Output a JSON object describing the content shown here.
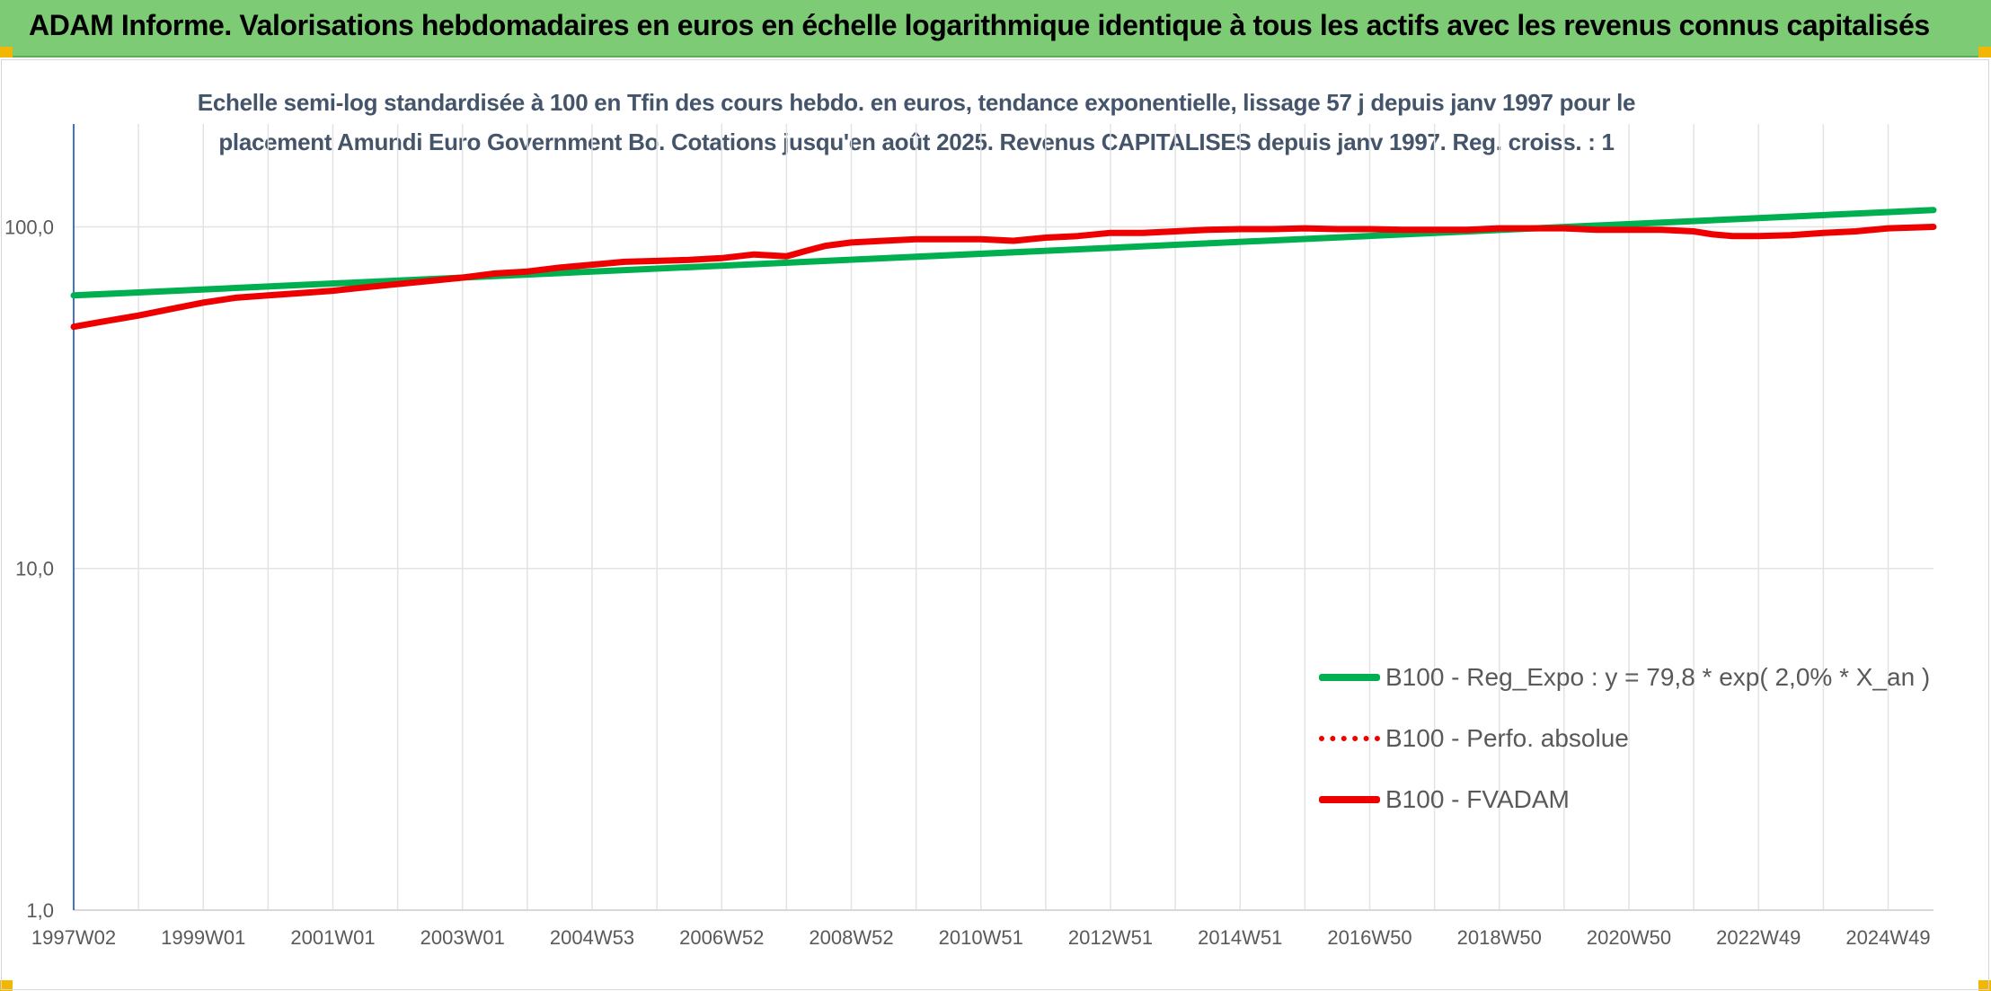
{
  "banner": {
    "title": "ADAM Informe. Valorisations hebdomadaires en euros en échelle logarithmique identique à tous les actifs avec les revenus connus capitalisés",
    "background": "#7dcb75",
    "corner_color": "#f2b705"
  },
  "chart_data": {
    "type": "line",
    "title": "Echelle semi-log standardisée à 100 en Tfin des cours hebdo. en euros, tendance exponentielle, lissage 57 j depuis janv 1997 pour le placement Amundi Euro Government Bo. Cotations jusqu'en août 2025. Revenus CAPITALISES depuis janv 1997. Reg. croiss. : 1",
    "xlabel": "",
    "ylabel": "",
    "yscale": "log",
    "ylim": [
      1,
      200
    ],
    "yticks": [
      1,
      10,
      100
    ],
    "ytick_labels": [
      "1,0",
      "10,0",
      "100,0"
    ],
    "xlim": [
      1997.0,
      2025.7
    ],
    "xticks": [
      1997.0,
      1999.0,
      2001.0,
      2003.0,
      2005.0,
      2007.0,
      2009.0,
      2011.0,
      2013.0,
      2015.0,
      2017.0,
      2019.0,
      2021.0,
      2023.0,
      2025.0
    ],
    "xtick_labels": [
      "1997W02",
      "1999W01",
      "2001W01",
      "2003W01",
      "2004W53",
      "2006W52",
      "2008W52",
      "2010W51",
      "2012W51",
      "2014W51",
      "2016W50",
      "2018W50",
      "2020W50",
      "2022W49",
      "2024W49"
    ],
    "grid": true,
    "legend_position": "bottom-right",
    "series": [
      {
        "name": "B100 - Reg_Expo : y = 79,8 * exp( 2,0% *  X_an )",
        "style": "solid",
        "color": "#00b050",
        "x": [
          1997.0,
          2025.7
        ],
        "y": [
          63,
          112
        ]
      },
      {
        "name": "B100 - Perfo. absolue",
        "style": "dotted",
        "color": "#ee0000",
        "x": [],
        "y": []
      },
      {
        "name": "B100 - FVADAM",
        "style": "solid",
        "color": "#ee0000",
        "x": [
          1997.0,
          1997.5,
          1998.0,
          1998.5,
          1999.0,
          1999.5,
          2000.0,
          2000.5,
          2001.0,
          2001.5,
          2002.0,
          2002.5,
          2003.0,
          2003.5,
          2004.0,
          2004.5,
          2005.0,
          2005.5,
          2006.0,
          2006.5,
          2007.0,
          2007.5,
          2008.0,
          2008.3,
          2008.6,
          2009.0,
          2009.5,
          2010.0,
          2010.5,
          2011.0,
          2011.5,
          2012.0,
          2012.5,
          2013.0,
          2013.5,
          2014.0,
          2014.5,
          2015.0,
          2015.5,
          2016.0,
          2016.5,
          2017.0,
          2017.5,
          2018.0,
          2018.5,
          2019.0,
          2019.5,
          2020.0,
          2020.5,
          2021.0,
          2021.5,
          2022.0,
          2022.3,
          2022.6,
          2023.0,
          2023.5,
          2024.0,
          2024.5,
          2025.0,
          2025.7
        ],
        "y": [
          51,
          53,
          55,
          57.5,
          60,
          62,
          63,
          64,
          65,
          66.5,
          68,
          69.5,
          71,
          73,
          74,
          76,
          77.5,
          79,
          79.5,
          80,
          81,
          83,
          82,
          85,
          88,
          90,
          91,
          92,
          92,
          92,
          91,
          93,
          94,
          96,
          96,
          97,
          98,
          98.5,
          98.5,
          99,
          98.5,
          98.5,
          98,
          98,
          98,
          99,
          99,
          99,
          98,
          98,
          98,
          97,
          95,
          94,
          94,
          94.5,
          96,
          97,
          99,
          100
        ]
      }
    ]
  }
}
